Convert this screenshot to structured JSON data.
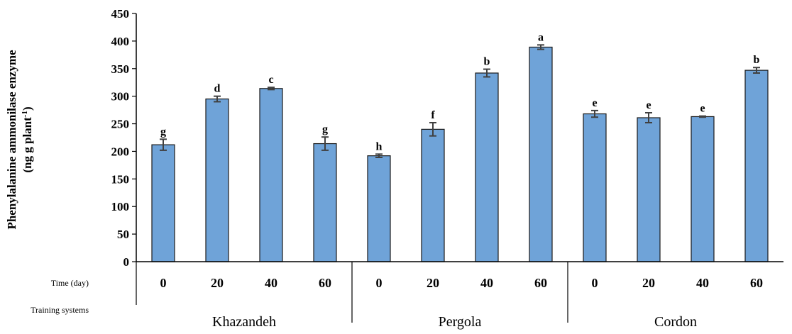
{
  "chart_data": {
    "type": "bar",
    "ylabel_line1": "Phenylalanine ammonilase enzyme",
    "ylabel_line2_main": "(ng g plant",
    "ylabel_line2_sup": "-1",
    "ylabel_line2_end": ")",
    "ylim": [
      0,
      450
    ],
    "yticks": [
      "0",
      "50",
      "100",
      "150",
      "200",
      "250",
      "300",
      "350",
      "400",
      "450"
    ],
    "ytick_values": [
      0,
      50,
      100,
      150,
      200,
      250,
      300,
      350,
      400,
      450
    ],
    "row_labels": {
      "time": "Time (day)",
      "training": "Training systems"
    },
    "groups": [
      {
        "name": "Khazandeh",
        "categories": [
          "0",
          "20",
          "40",
          "60"
        ],
        "values": [
          212,
          295,
          314,
          214
        ],
        "errors": [
          10,
          5,
          2,
          12
        ],
        "letters": [
          "g",
          "d",
          "c",
          "g"
        ]
      },
      {
        "name": "Pergola",
        "categories": [
          "0",
          "20",
          "40",
          "60"
        ],
        "values": [
          192,
          240,
          342,
          389
        ],
        "errors": [
          3,
          12,
          7,
          4
        ],
        "letters": [
          "h",
          "f",
          "b",
          "a"
        ]
      },
      {
        "name": "Cordon",
        "categories": [
          "0",
          "20",
          "40",
          "60"
        ],
        "values": [
          268,
          261,
          263,
          347
        ],
        "errors": [
          6,
          9,
          1,
          5
        ],
        "letters": [
          "e",
          "e",
          "e",
          "b"
        ]
      }
    ],
    "grid": false,
    "legend": "none",
    "colors": {
      "bar_fill": "#6fa3d8",
      "bar_stroke": "#1a1a1a",
      "error": "#404040",
      "axis": "#000000"
    }
  }
}
